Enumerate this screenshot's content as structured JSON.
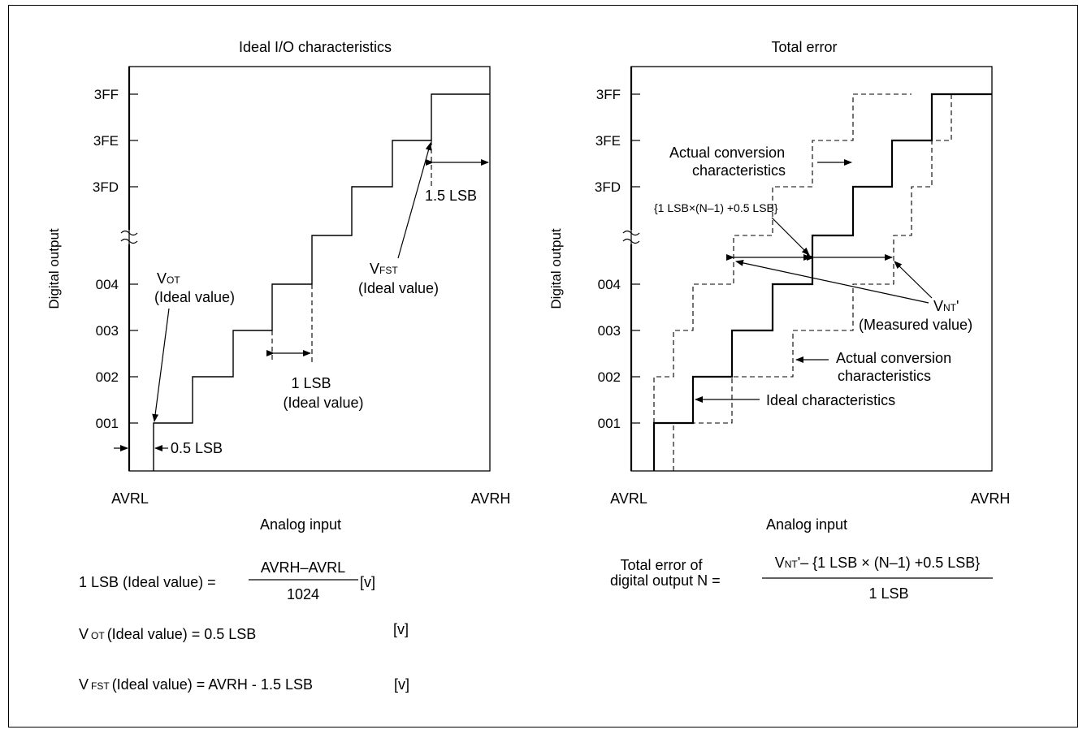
{
  "left_diagram": {
    "title": "Ideal I/O characteristics",
    "ylabel": "Digital output",
    "xlabel": "Analog input",
    "x_min_label": "AVRL",
    "x_max_label": "AVRH",
    "y_ticks": [
      "3FF",
      "3FE",
      "3FD",
      "004",
      "003",
      "002",
      "001"
    ],
    "vot": {
      "main": "V",
      "sub": "OT",
      "note": "(Ideal value)"
    },
    "vfst": {
      "main": "V",
      "sub": "FST",
      "note": "(Ideal value)"
    },
    "lsb_1": "1 LSB",
    "lsb_1_note": "(Ideal value)",
    "lsb_15": "1.5 LSB",
    "lsb_05": "0.5 LSB"
  },
  "right_diagram": {
    "title": "Total error",
    "ylabel": "Digital output",
    "xlabel": "Analog input",
    "x_min_label": "AVRL",
    "x_max_label": "AVRH",
    "y_ticks": [
      "3FF",
      "3FE",
      "3FD",
      "004",
      "003",
      "002",
      "001"
    ],
    "actual_top_1": "Actual conversion",
    "actual_top_2": "characteristics",
    "bracket_expr": "{1 LSB×(N–1) +0.5 LSB}",
    "vnt": {
      "main": "V",
      "sub": "NT",
      "suffix": "'",
      "note": "(Measured value)"
    },
    "actual_bottom_1": "Actual conversion",
    "actual_bottom_2": "characteristics",
    "ideal_label": "Ideal characteristics"
  },
  "formulas": {
    "lsb_lhs": "1 LSB (Ideal value)  =",
    "lsb_num": "AVRH–AVRL",
    "lsb_den": "1024",
    "lsb_unit": "[v]",
    "vot_main": "V",
    "vot_sub": "OT",
    "vot_rest": "(Ideal value)  = 0.5 LSB",
    "vot_unit": "[v]",
    "vfst_main": "V",
    "vfst_sub": "FST",
    "vfst_rest": "(Ideal value)  = AVRH - 1.5 LSB",
    "vfst_unit": "[v]",
    "total_lhs_1": "Total error of",
    "total_lhs_2": "digital output N  =",
    "total_num_main": "V",
    "total_num_sub": "NT",
    "total_num_rest": "'– {1 LSB × (N–1) +0.5 LSB}",
    "total_den": "1 LSB"
  }
}
